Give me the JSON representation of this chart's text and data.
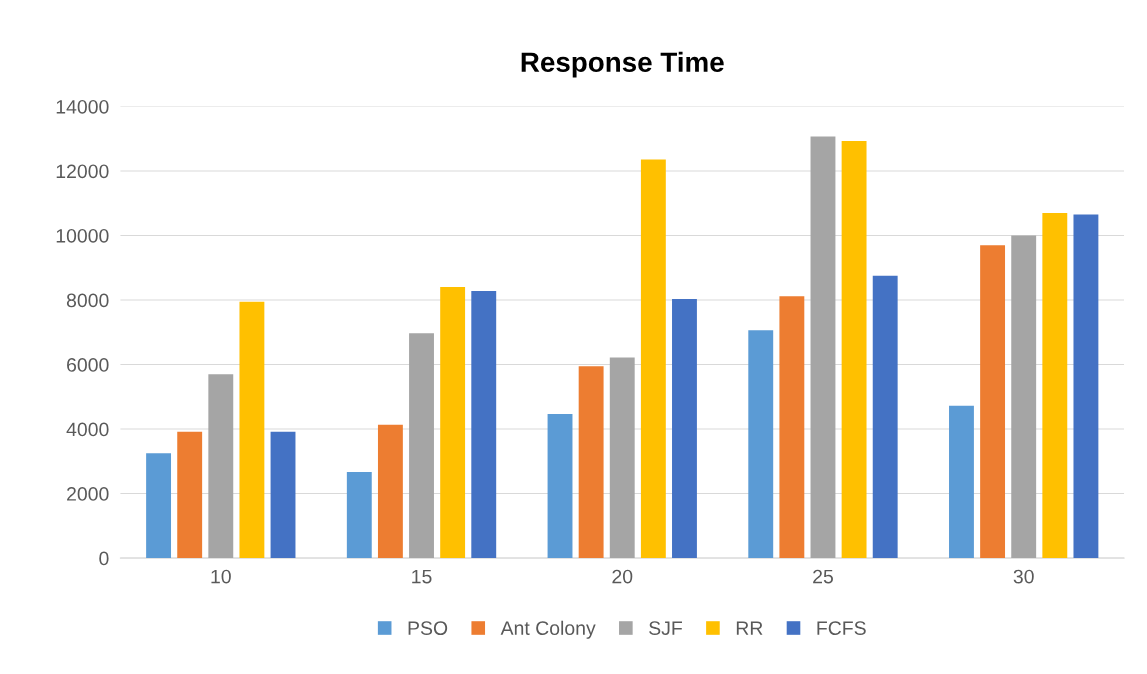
{
  "chart_data": {
    "type": "bar",
    "title": "Response Time",
    "categories": [
      "10",
      "15",
      "20",
      "25",
      "30"
    ],
    "series": [
      {
        "name": "PSO",
        "color": "#5b9bd5",
        "values": [
          3250,
          2670,
          4470,
          7060,
          4720
        ]
      },
      {
        "name": "Ant Colony",
        "color": "#ed7d31",
        "values": [
          3920,
          4130,
          5950,
          8120,
          9700
        ]
      },
      {
        "name": "SJF",
        "color": "#a5a5a5",
        "values": [
          5700,
          6970,
          6220,
          13070,
          10000
        ]
      },
      {
        "name": "RR",
        "color": "#ffc000",
        "values": [
          7950,
          8400,
          12360,
          12930,
          10700
        ]
      },
      {
        "name": "FCFS",
        "color": "#4472c4",
        "values": [
          3920,
          8280,
          8030,
          8750,
          10650
        ]
      }
    ],
    "ylim": [
      0,
      14000
    ],
    "yticks": [
      0,
      2000,
      4000,
      6000,
      8000,
      10000,
      12000,
      14000
    ],
    "grid": "y",
    "legend": "bottom"
  }
}
